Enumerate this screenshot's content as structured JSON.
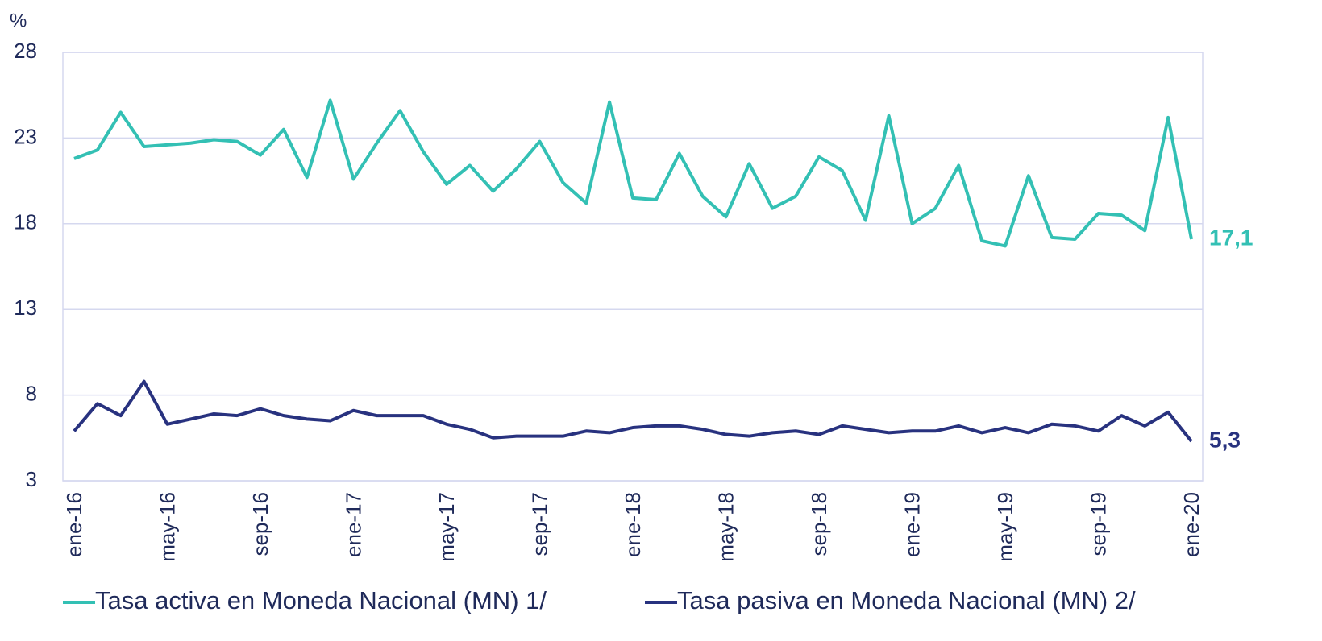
{
  "chart_data": {
    "type": "line",
    "y_unit": "%",
    "categories": [
      "ene-16",
      null,
      null,
      null,
      "may-16",
      null,
      null,
      null,
      "sep-16",
      null,
      null,
      null,
      "ene-17",
      null,
      null,
      null,
      "may-17",
      null,
      null,
      null,
      "sep-17",
      null,
      null,
      null,
      "ene-18",
      null,
      null,
      null,
      "may-18",
      null,
      null,
      null,
      "sep-18",
      null,
      null,
      null,
      "ene-19",
      null,
      null,
      null,
      "may-19",
      null,
      null,
      null,
      "sep-19",
      null,
      null,
      null,
      "ene-20"
    ],
    "series": [
      {
        "name": "Tasa activa en Moneda Nacional (MN) 1/",
        "color": "#33c0b4",
        "values": [
          21.8,
          22.3,
          24.5,
          22.5,
          22.6,
          22.7,
          22.9,
          22.8,
          22.0,
          23.5,
          20.7,
          25.2,
          20.6,
          22.7,
          24.6,
          22.2,
          20.3,
          21.4,
          19.9,
          21.2,
          22.8,
          20.4,
          19.2,
          25.1,
          19.5,
          19.4,
          22.1,
          19.6,
          18.4,
          21.5,
          18.9,
          19.6,
          21.9,
          21.1,
          18.2,
          24.3,
          18.0,
          18.9,
          21.4,
          17.0,
          16.7,
          20.8,
          17.2,
          17.1,
          18.6,
          18.5,
          17.6,
          24.2,
          17.1
        ],
        "value_labels": [
          null,
          null,
          null,
          null,
          null,
          null,
          null,
          null,
          null,
          null,
          null,
          null,
          null,
          null,
          null,
          null,
          null,
          null,
          null,
          null,
          null,
          null,
          null,
          null,
          null,
          null,
          null,
          null,
          null,
          null,
          null,
          null,
          null,
          null,
          null,
          null,
          null,
          null,
          null,
          null,
          null,
          null,
          null,
          null,
          null,
          null,
          null,
          null,
          "17,1"
        ]
      },
      {
        "name": "Tasa pasiva en Moneda Nacional (MN) 2/",
        "color": "#28327f",
        "values": [
          5.9,
          7.5,
          6.8,
          8.8,
          6.3,
          6.6,
          6.9,
          6.8,
          7.2,
          6.8,
          6.6,
          6.5,
          7.1,
          6.8,
          6.8,
          6.8,
          6.3,
          6.0,
          5.5,
          5.6,
          5.6,
          5.6,
          5.9,
          5.8,
          6.1,
          6.2,
          6.2,
          6.0,
          5.7,
          5.6,
          5.8,
          5.9,
          5.7,
          6.2,
          6.0,
          5.8,
          5.9,
          5.9,
          6.2,
          5.8,
          6.1,
          5.8,
          6.3,
          6.2,
          5.9,
          6.8,
          6.2,
          7.0,
          5.3
        ],
        "value_labels": [
          null,
          null,
          null,
          null,
          null,
          null,
          null,
          null,
          null,
          null,
          null,
          null,
          null,
          null,
          null,
          null,
          null,
          null,
          null,
          null,
          null,
          null,
          null,
          null,
          null,
          null,
          null,
          null,
          null,
          null,
          null,
          null,
          null,
          null,
          null,
          null,
          null,
          null,
          null,
          null,
          null,
          null,
          null,
          null,
          null,
          null,
          null,
          null,
          "5,3"
        ]
      }
    ],
    "ylim": [
      3,
      28
    ],
    "yticks": [
      3,
      8,
      13,
      18,
      23,
      28
    ],
    "grid": true,
    "legend": "bottom"
  }
}
